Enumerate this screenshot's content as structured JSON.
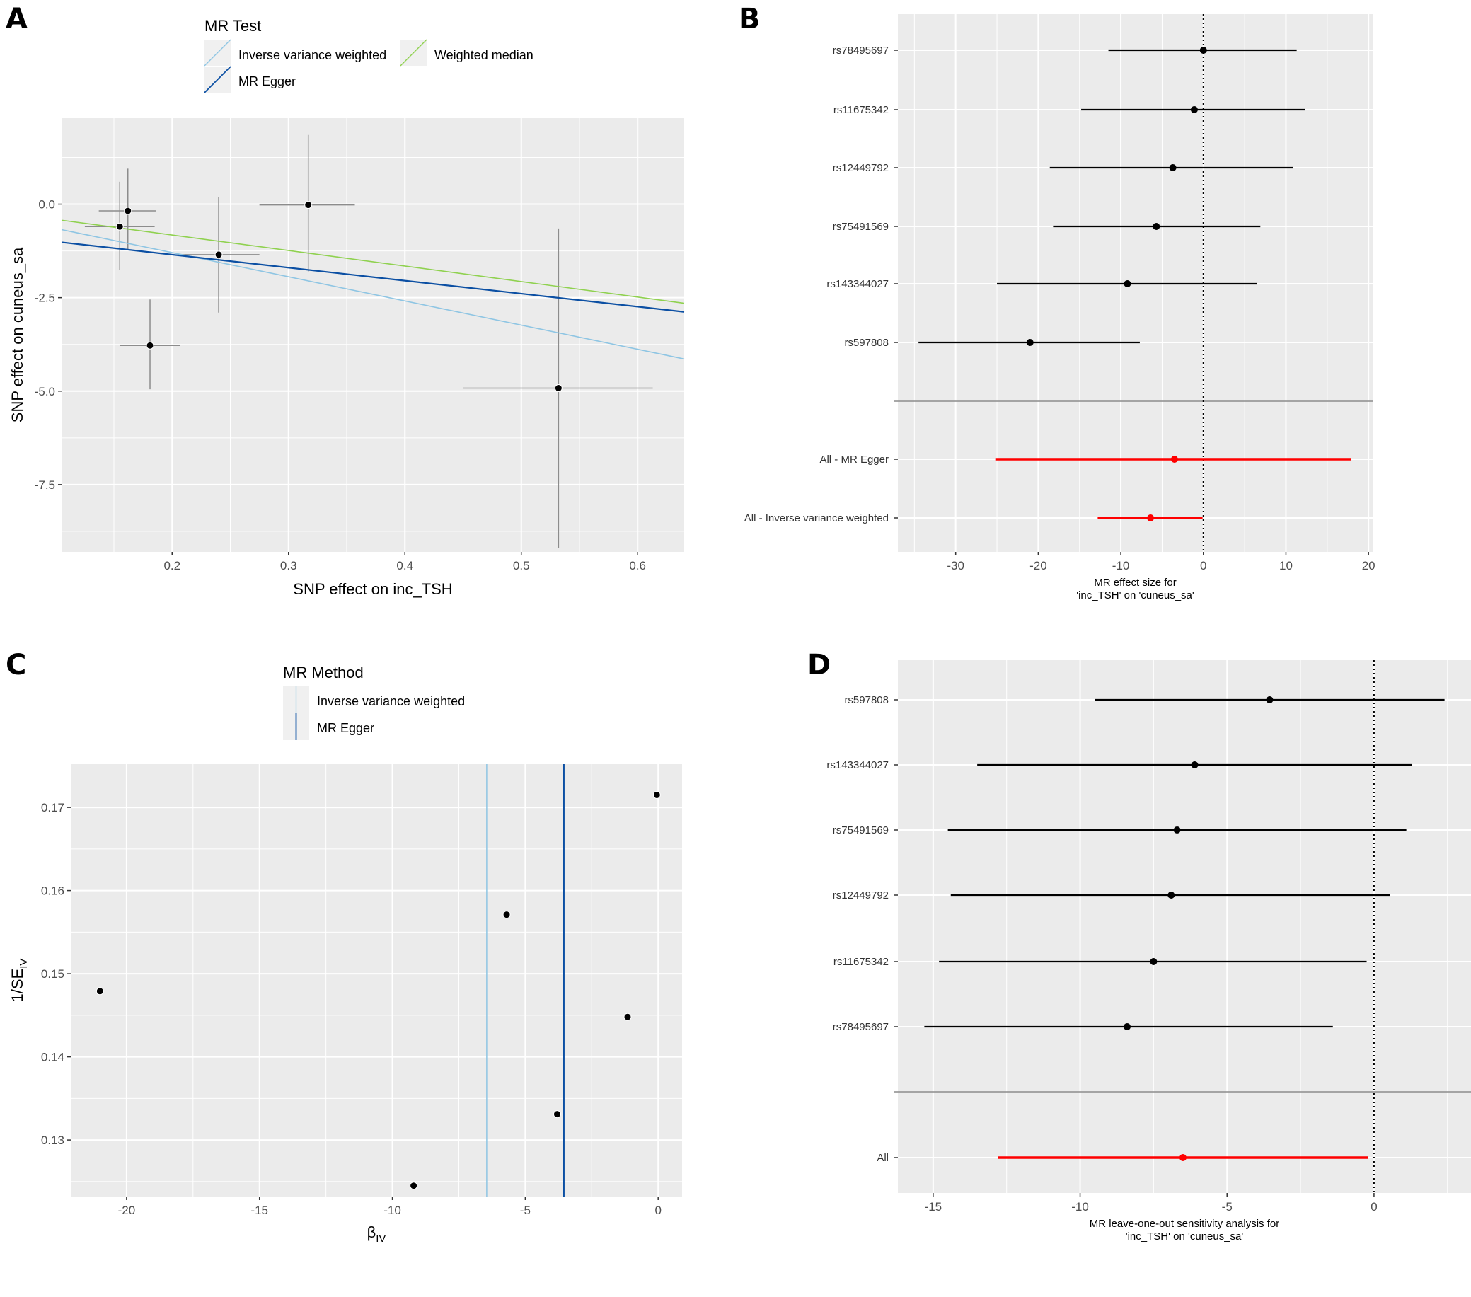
{
  "panels": {
    "A": {
      "letter": "A"
    },
    "B": {
      "letter": "B"
    },
    "C": {
      "letter": "C"
    },
    "D": {
      "letter": "D"
    }
  },
  "colors": {
    "panel_bg": "#ebebeb",
    "grid": "#ffffff",
    "ivw": "#8ec5e3",
    "egger": "#0b4fa3",
    "weighted_median": "#8fd14f",
    "point": "#000000",
    "errorbar": "#8c8c8c",
    "summary": "#ff0000"
  },
  "chart_data": [
    {
      "id": "A",
      "type": "scatter",
      "title": "",
      "xlabel": "SNP effect on inc_TSH",
      "ylabel": "SNP effect on cuneus_sa",
      "xlim": [
        0.105,
        0.64
      ],
      "ylim": [
        -9.3,
        2.3
      ],
      "xticks": [
        0.2,
        0.3,
        0.4,
        0.5,
        0.6
      ],
      "xtick_labels": [
        "0.2",
        "0.3",
        "0.4",
        "0.5",
        "0.6"
      ],
      "yticks": [
        0.0,
        -2.5,
        -5.0,
        -7.5
      ],
      "ytick_labels": [
        "0.0",
        "-2.5",
        "-5.0",
        "-7.5"
      ],
      "grid": true,
      "legend": {
        "title": "MR Test",
        "placement": "top",
        "entries": [
          {
            "label": "Inverse variance weighted",
            "color_key": "ivw"
          },
          {
            "label": "Weighted median",
            "color_key": "weighted_median"
          },
          {
            "label": "MR Egger",
            "color_key": "egger"
          }
        ]
      },
      "points": [
        {
          "x": 0.162,
          "y": -0.18,
          "xmin": 0.137,
          "xmax": 0.186,
          "ymin": -1.2,
          "ymax": 0.95
        },
        {
          "x": 0.155,
          "y": -0.6,
          "xmin": 0.125,
          "xmax": 0.185,
          "ymin": -1.75,
          "ymax": 0.6
        },
        {
          "x": 0.24,
          "y": -1.35,
          "xmin": 0.205,
          "xmax": 0.275,
          "ymin": -2.9,
          "ymax": 0.2
        },
        {
          "x": 0.317,
          "y": -0.02,
          "xmin": 0.275,
          "xmax": 0.357,
          "ymin": -1.8,
          "ymax": 1.85
        },
        {
          "x": 0.181,
          "y": -3.78,
          "xmin": 0.155,
          "xmax": 0.207,
          "ymin": -4.95,
          "ymax": -2.55
        },
        {
          "x": 0.532,
          "y": -4.92,
          "xmin": 0.45,
          "xmax": 0.613,
          "ymin": -9.2,
          "ymax": -0.65
        }
      ],
      "lines": [
        {
          "name": "Inverse variance weighted",
          "color_key": "ivw",
          "x": [
            0.105,
            0.64
          ],
          "y": [
            -0.68,
            -4.14
          ]
        },
        {
          "name": "Weighted median",
          "color_key": "weighted_median",
          "x": [
            0.105,
            0.64
          ],
          "y": [
            -0.43,
            -2.65
          ]
        },
        {
          "name": "MR Egger",
          "color_key": "egger",
          "x": [
            0.105,
            0.64
          ],
          "y": [
            -1.02,
            -2.88
          ]
        }
      ]
    },
    {
      "id": "B",
      "type": "forest",
      "title": "",
      "xlabel": "MR effect size for\n'inc_TSH' on 'cuneus_sa'",
      "xlabel_lines": [
        "MR effect size for",
        "'inc_TSH' on 'cuneus_sa'"
      ],
      "xlim": [
        -37,
        20.5
      ],
      "xticks": [
        -30,
        -20,
        -10,
        0,
        10,
        20
      ],
      "xtick_labels": [
        "-30",
        "-20",
        "-10",
        "0",
        "10",
        "20"
      ],
      "grid": true,
      "reference_line": 0,
      "rows": [
        {
          "label": "rs78495697",
          "b": 0.0,
          "lo": -11.5,
          "hi": 11.3,
          "summary": false
        },
        {
          "label": "rs11675342",
          "b": -1.1,
          "lo": -14.8,
          "hi": 12.3,
          "summary": false
        },
        {
          "label": "rs12449792",
          "b": -3.7,
          "lo": -18.6,
          "hi": 10.9,
          "summary": false
        },
        {
          "label": "rs75491569",
          "b": -5.7,
          "lo": -18.2,
          "hi": 6.9,
          "summary": false
        },
        {
          "label": "rs143344027",
          "b": -9.2,
          "lo": -25.0,
          "hi": 6.5,
          "summary": false
        },
        {
          "label": "rs597808",
          "b": -21.0,
          "lo": -34.5,
          "hi": -7.7,
          "summary": false
        },
        {
          "label": "",
          "separator": true
        },
        {
          "label": "All - MR Egger",
          "b": -3.5,
          "lo": -25.2,
          "hi": 17.9,
          "summary": true
        },
        {
          "label": "All - Inverse variance weighted",
          "b": -6.4,
          "lo": -12.8,
          "hi": -0.1,
          "summary": true
        }
      ]
    },
    {
      "id": "C",
      "type": "scatter",
      "title": "",
      "xlabel": "β",
      "xlabel_sub": "IV",
      "ylabel": "1/SE",
      "ylabel_sub": "IV",
      "xlim": [
        -22.1,
        0.9
      ],
      "ylim": [
        0.1232,
        0.1752
      ],
      "xticks": [
        -20,
        -15,
        -10,
        -5,
        0
      ],
      "xtick_labels": [
        "-20",
        "-15",
        "-10",
        "-5",
        "0"
      ],
      "yticks": [
        0.13,
        0.14,
        0.15,
        0.16,
        0.17
      ],
      "ytick_labels": [
        "0.13",
        "0.14",
        "0.15",
        "0.16",
        "0.17"
      ],
      "grid": true,
      "legend": {
        "title": "MR Method",
        "placement": "top",
        "entries": [
          {
            "label": "Inverse variance weighted",
            "color_key": "ivw"
          },
          {
            "label": "MR Egger",
            "color_key": "egger"
          }
        ]
      },
      "points": [
        {
          "x": -0.05,
          "y": 0.1715
        },
        {
          "x": -5.7,
          "y": 0.1571
        },
        {
          "x": -21.0,
          "y": 0.1479
        },
        {
          "x": -1.15,
          "y": 0.1448
        },
        {
          "x": -3.8,
          "y": 0.1331
        },
        {
          "x": -9.2,
          "y": 0.1245
        }
      ],
      "vlines": [
        {
          "name": "Inverse variance weighted",
          "color_key": "ivw",
          "x": -6.45
        },
        {
          "name": "MR Egger",
          "color_key": "egger",
          "x": -3.55
        }
      ]
    },
    {
      "id": "D",
      "type": "forest",
      "title": "",
      "xlabel": "MR leave-one-out sensitivity analysis for\n'inc_TSH' on 'cuneus_sa'",
      "xlabel_lines": [
        "MR leave-one-out sensitivity analysis for",
        "'inc_TSH' on 'cuneus_sa'"
      ],
      "xlim": [
        -16.2,
        3.3
      ],
      "xticks": [
        -15,
        -10,
        -5,
        0
      ],
      "xtick_labels": [
        "-15",
        "-10",
        "-5",
        "0"
      ],
      "grid": true,
      "reference_line": 0,
      "rows": [
        {
          "label": "rs597808",
          "b": -3.55,
          "lo": -9.5,
          "hi": 2.4,
          "summary": false
        },
        {
          "label": "rs143344027",
          "b": -6.1,
          "lo": -13.5,
          "hi": 1.3,
          "summary": false
        },
        {
          "label": "rs75491569",
          "b": -6.7,
          "lo": -14.5,
          "hi": 1.1,
          "summary": false
        },
        {
          "label": "rs12449792",
          "b": -6.9,
          "lo": -14.4,
          "hi": 0.55,
          "summary": false
        },
        {
          "label": "rs11675342",
          "b": -7.5,
          "lo": -14.8,
          "hi": -0.25,
          "summary": false
        },
        {
          "label": "rs78495697",
          "b": -8.4,
          "lo": -15.3,
          "hi": -1.4,
          "summary": false
        },
        {
          "label": "",
          "separator": true
        },
        {
          "label": "All",
          "b": -6.5,
          "lo": -12.8,
          "hi": -0.2,
          "summary": true
        }
      ]
    }
  ]
}
